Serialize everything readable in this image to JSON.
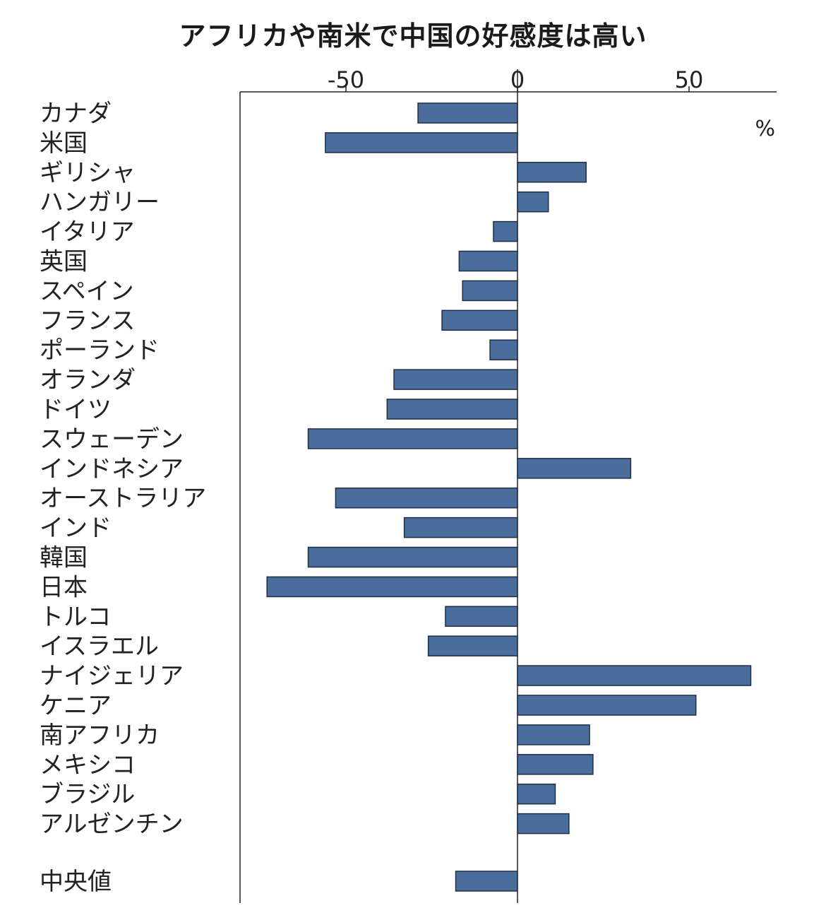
{
  "chart_data": {
    "type": "bar",
    "orientation": "horizontal",
    "title": "アフリカや南米で中国の好感度は高い",
    "unit": "%",
    "xlim": [
      -81,
      76
    ],
    "xticks": [
      -50,
      0,
      50
    ],
    "xtick_labels": [
      "-50",
      "0",
      "50"
    ],
    "bar_color": "#4a6d9c",
    "categories": [
      "カナダ",
      "米国",
      "ギリシャ",
      "ハンガリー",
      "イタリア",
      "英国",
      "スペイン",
      "フランス",
      "ポーランド",
      "オランダ",
      "ドイツ",
      "スウェーデン",
      "インドネシア",
      "オーストラリア",
      "インド",
      "韓国",
      "日本",
      "トルコ",
      "イスラエル",
      "ナイジェリア",
      "ケニア",
      "南アフリカ",
      "メキシコ",
      "ブラジル",
      "アルゼンチン",
      "中央値"
    ],
    "values": [
      -29,
      -56,
      20,
      9,
      -7,
      -17,
      -16,
      -22,
      -8,
      -36,
      -38,
      -61,
      33,
      -53,
      -33,
      -61,
      -73,
      -21,
      -26,
      68,
      52,
      21,
      22,
      11,
      15,
      -18
    ]
  }
}
